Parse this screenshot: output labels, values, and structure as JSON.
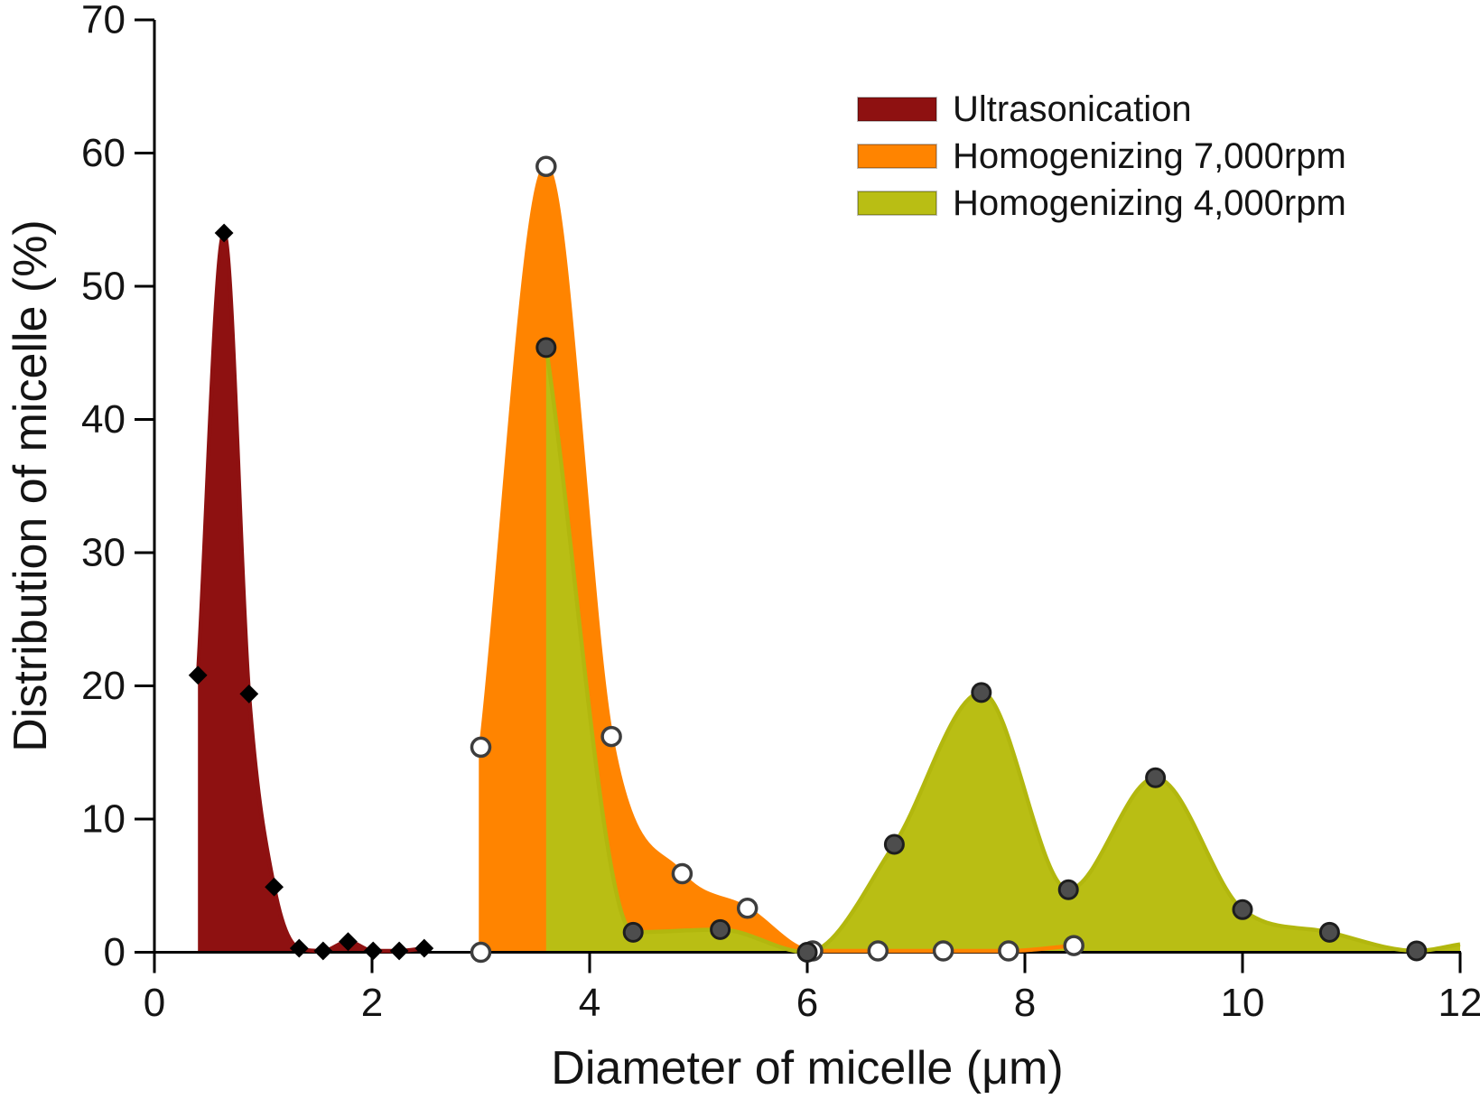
{
  "figure": {
    "background_color": "#ffffff",
    "axis_color": "#000000",
    "x_axis": {
      "label": "Diameter of micelle (μm)",
      "min": 0,
      "max": 12,
      "ticks": [
        0,
        2,
        4,
        6,
        8,
        10,
        12
      ]
    },
    "y_axis": {
      "label": "Distribution of micelle (%)",
      "min": 0,
      "max": 70,
      "ticks": [
        0,
        10,
        20,
        30,
        40,
        50,
        60,
        70
      ]
    }
  },
  "chart_data": {
    "type": "area",
    "title": "",
    "xlabel": "Diameter of micelle (μm)",
    "ylabel": "Distribution of micelle (%)",
    "xlim": [
      0,
      12
    ],
    "ylim": [
      0,
      70
    ],
    "grid": false,
    "legend_position": "top-right",
    "series": [
      {
        "name": "Ultrasonication",
        "color": "#8e1111",
        "line_color": "#8e1111",
        "marker": "filled-diamond",
        "marker_fill": "#000000",
        "marker_stroke": "#000000",
        "x": [
          0.4,
          0.64,
          0.87,
          1.1,
          1.33,
          1.55,
          1.78,
          2.01,
          2.25,
          2.48
        ],
        "y": [
          20.8,
          54.0,
          19.4,
          4.9,
          0.3,
          0.1,
          0.8,
          0.1,
          0.1,
          0.3
        ]
      },
      {
        "name": "Homogenizing 7,000rpm",
        "color": "#ff8400",
        "line_color": "#ff8400",
        "marker": "open-circle",
        "marker_fill": "#ffffff",
        "marker_stroke": "#3d3d3d",
        "x": [
          3.0,
          3.0,
          3.6,
          4.2,
          4.85,
          5.45,
          6.05,
          6.65,
          7.25,
          7.85,
          8.45
        ],
        "y": [
          0.0,
          15.4,
          59.0,
          16.2,
          5.9,
          3.3,
          0.1,
          0.1,
          0.1,
          0.1,
          0.5
        ]
      },
      {
        "name": "Homogenizing 4,000rpm",
        "color": "#b9be14",
        "line_color": "#b2b70e",
        "marker": "filled-circle",
        "marker_fill": "#4d4d4d",
        "marker_stroke": "#1e1e1e",
        "x": [
          3.6,
          4.4,
          5.2,
          6.0,
          6.8,
          7.6,
          8.4,
          9.2,
          10.0,
          10.8,
          11.6
        ],
        "y": [
          45.4,
          1.5,
          1.7,
          0.0,
          8.1,
          19.5,
          4.7,
          13.1,
          3.2,
          1.5,
          0.1
        ],
        "fill_tail": [
          12.0,
          0.6
        ]
      }
    ]
  }
}
